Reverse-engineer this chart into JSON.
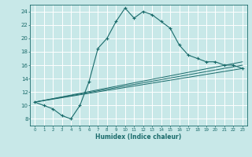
{
  "xlabel": "Humidex (Indice chaleur)",
  "bg_color": "#c8e8e8",
  "grid_color": "#ffffff",
  "line_color": "#1a6b6b",
  "xlim": [
    -0.5,
    23.5
  ],
  "ylim": [
    7,
    25
  ],
  "xticks": [
    0,
    1,
    2,
    3,
    4,
    5,
    6,
    7,
    8,
    9,
    10,
    11,
    12,
    13,
    14,
    15,
    16,
    17,
    18,
    19,
    20,
    21,
    22,
    23
  ],
  "yticks": [
    8,
    10,
    12,
    14,
    16,
    18,
    20,
    22,
    24
  ],
  "main_x": [
    0,
    1,
    2,
    3,
    4,
    5,
    6,
    7,
    8,
    9,
    10,
    11,
    12,
    13,
    14,
    15,
    16,
    17,
    18,
    19,
    20,
    21,
    22,
    23
  ],
  "main_y": [
    10.5,
    10.0,
    9.5,
    8.5,
    8.0,
    10.0,
    13.5,
    18.5,
    20.0,
    22.5,
    24.5,
    23.0,
    24.0,
    23.5,
    22.5,
    21.5,
    19.0,
    17.5,
    17.0,
    16.5,
    16.5,
    16.0,
    16.0,
    15.5
  ],
  "line2_x": [
    0,
    23
  ],
  "line2_y": [
    10.5,
    16.5
  ],
  "line3_x": [
    0,
    23
  ],
  "line3_y": [
    10.5,
    15.5
  ],
  "line4_x": [
    0,
    23
  ],
  "line4_y": [
    10.5,
    16.0
  ]
}
